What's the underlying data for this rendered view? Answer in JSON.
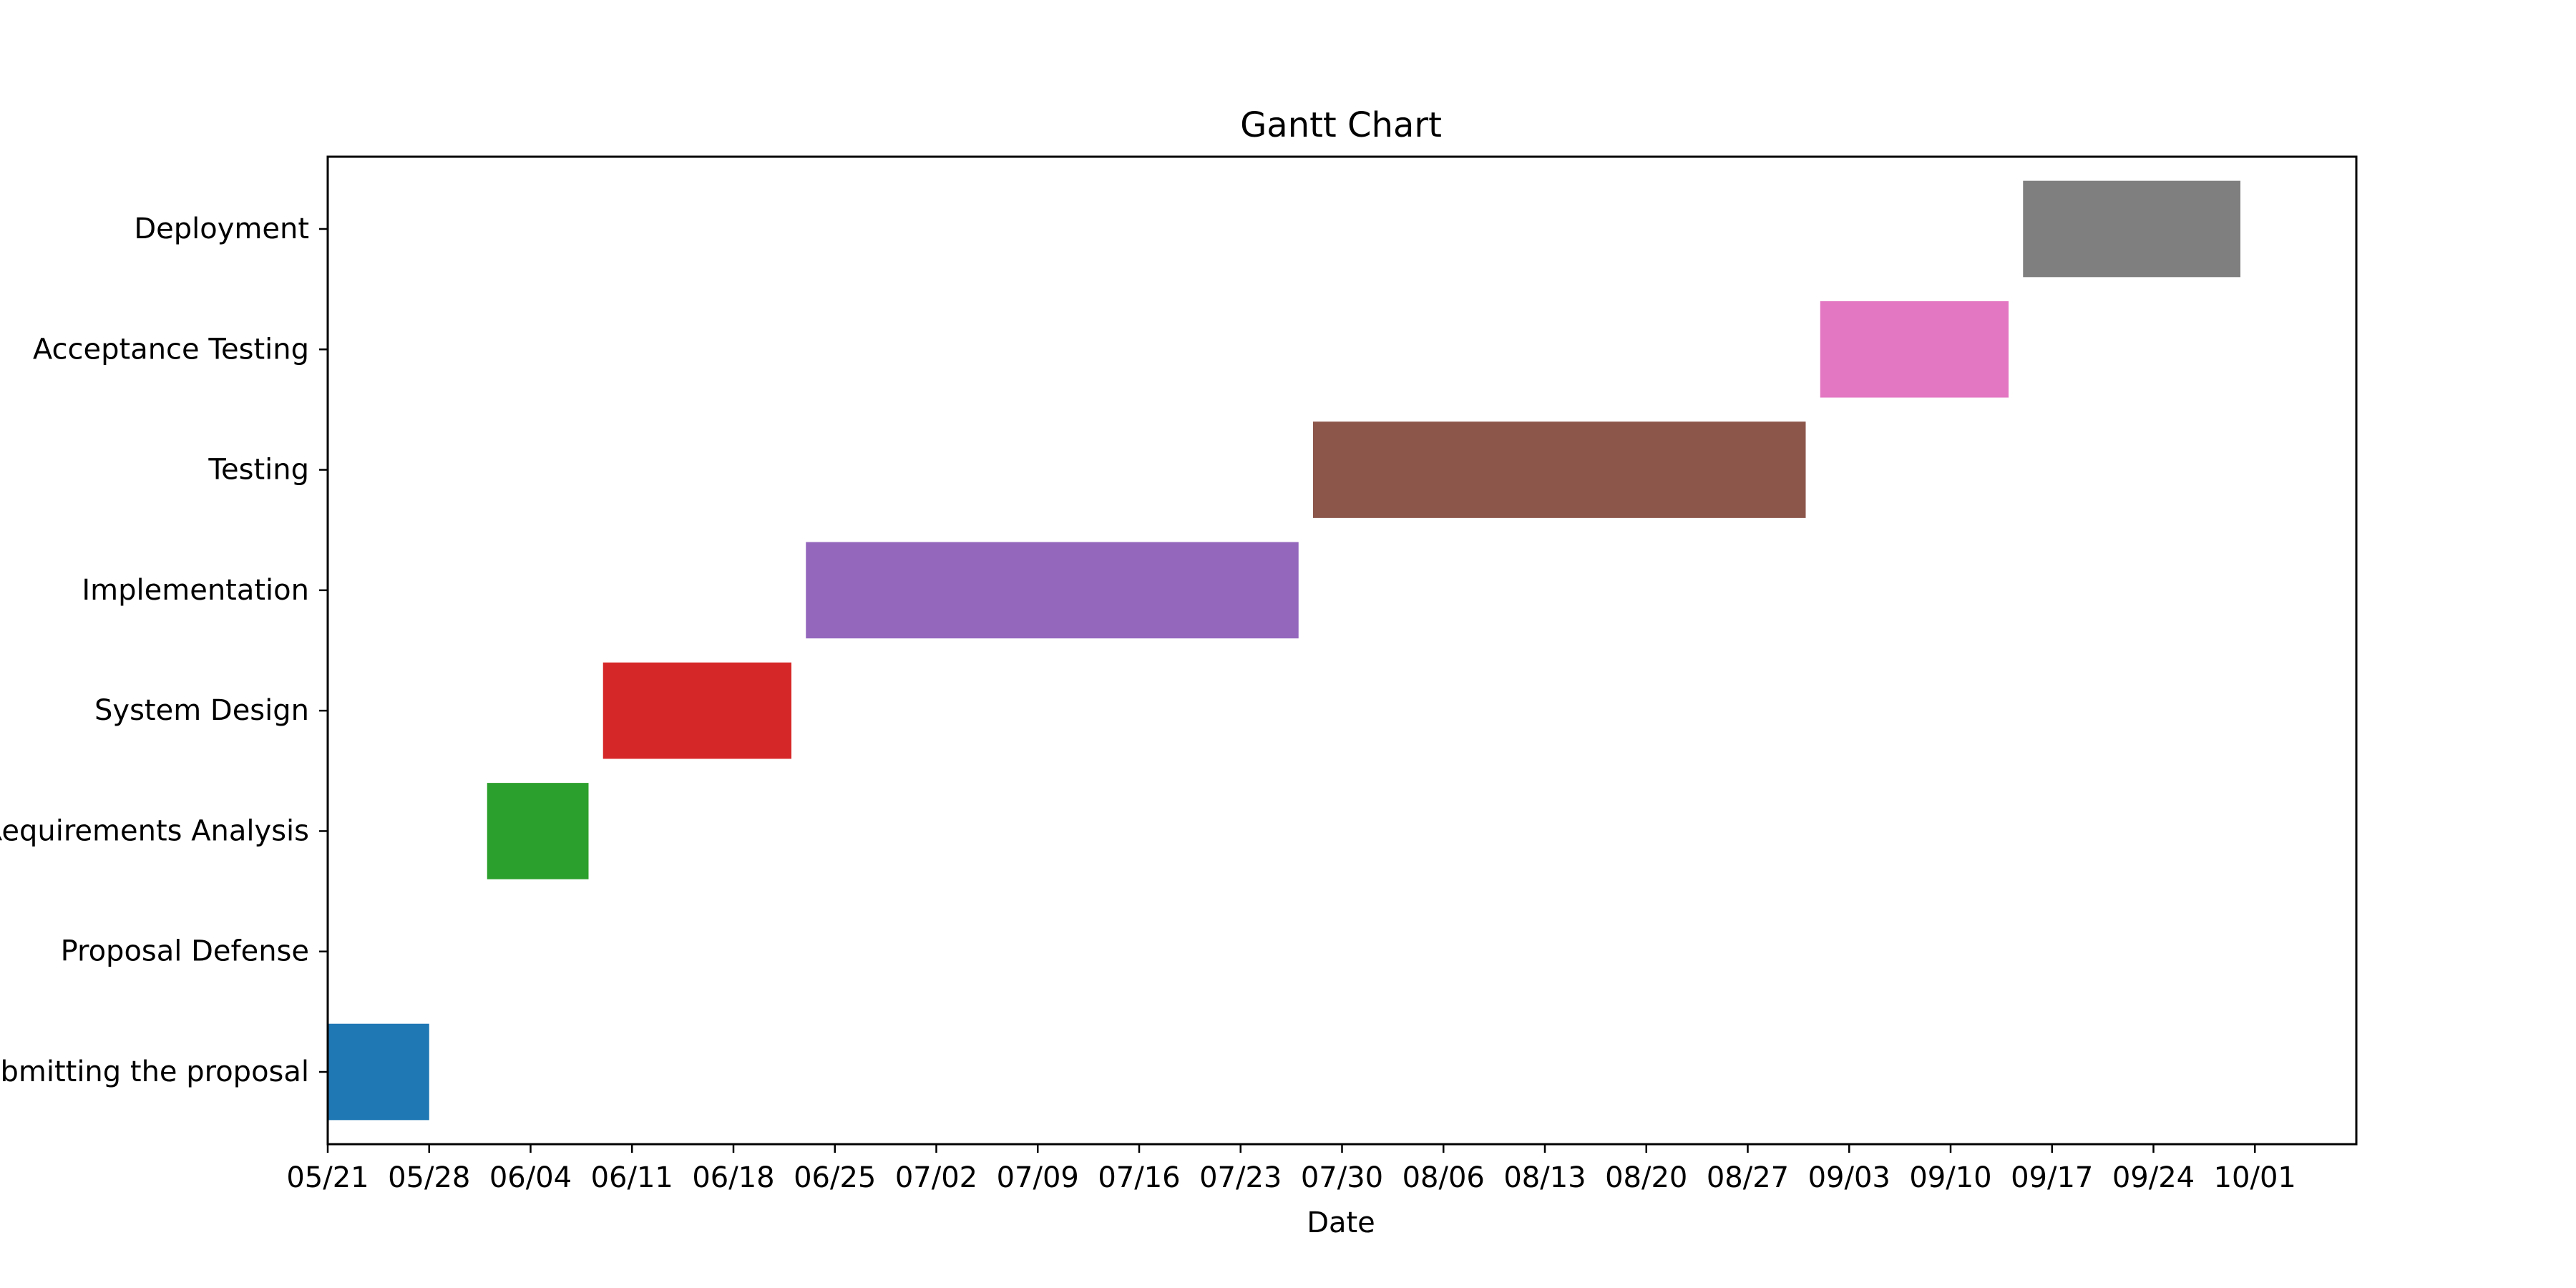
{
  "chart_data": {
    "type": "gantt",
    "title": "Gantt Chart",
    "xlabel": "Date",
    "ylabel": "",
    "x_axis_type": "date",
    "xlim": [
      "2023-05-21",
      "2023-10-08"
    ],
    "x_tick_labels": [
      "05/21",
      "05/28",
      "06/04",
      "06/11",
      "06/18",
      "06/25",
      "07/02",
      "07/09",
      "07/16",
      "07/23",
      "07/30",
      "08/06",
      "08/13",
      "08/20",
      "08/27",
      "09/03",
      "09/10",
      "09/17",
      "09/24",
      "10/01"
    ],
    "x_ticks": [
      "2023-05-21",
      "2023-05-28",
      "2023-06-04",
      "2023-06-11",
      "2023-06-18",
      "2023-06-25",
      "2023-07-02",
      "2023-07-09",
      "2023-07-16",
      "2023-07-23",
      "2023-07-30",
      "2023-08-06",
      "2023-08-13",
      "2023-08-20",
      "2023-08-27",
      "2023-09-03",
      "2023-09-10",
      "2023-09-17",
      "2023-09-24",
      "2023-10-01"
    ],
    "grid": false,
    "tasks": [
      {
        "label": "Submitting the proposal",
        "start": "2023-05-21",
        "end": "2023-05-28",
        "color": "#1f77b4"
      },
      {
        "label": "Proposal Defense",
        "start": null,
        "end": null,
        "color": "#ff7f0e"
      },
      {
        "label": "Requirements Analysis",
        "start": "2023-06-01",
        "end": "2023-06-08",
        "color": "#2ca02c"
      },
      {
        "label": "System Design",
        "start": "2023-06-09",
        "end": "2023-06-22",
        "color": "#d62728"
      },
      {
        "label": "Implementation",
        "start": "2023-06-23",
        "end": "2023-07-27",
        "color": "#9467bd"
      },
      {
        "label": "Testing",
        "start": "2023-07-28",
        "end": "2023-08-31",
        "color": "#8c564b"
      },
      {
        "label": "Acceptance Testing",
        "start": "2023-09-01",
        "end": "2023-09-14",
        "color": "#e377c2"
      },
      {
        "label": "Deployment",
        "start": "2023-09-15",
        "end": "2023-09-30",
        "color": "#7f7f7f"
      }
    ]
  }
}
